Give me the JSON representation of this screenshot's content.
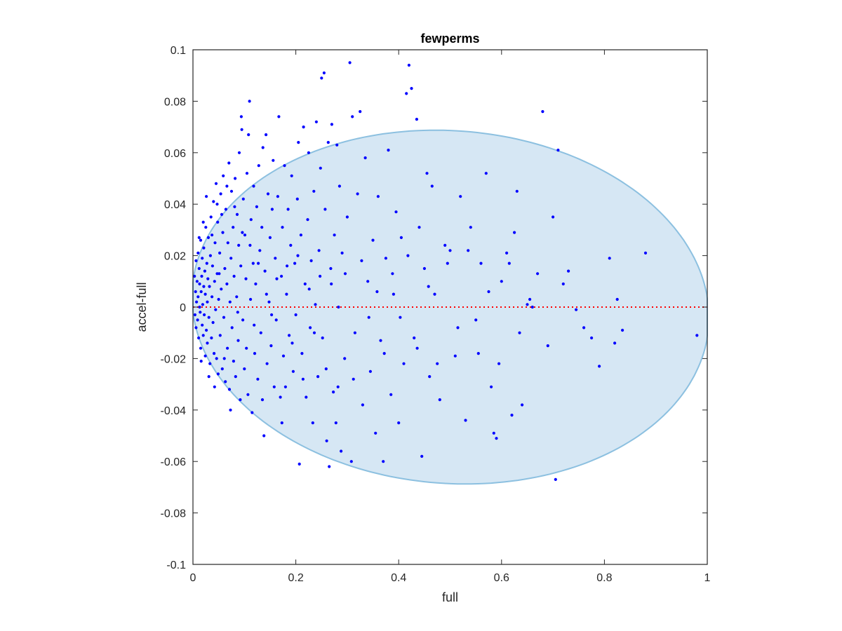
{
  "chart_data": {
    "type": "scatter",
    "title": "fewperms",
    "xlabel": "full",
    "ylabel": "accel-full",
    "xlim": [
      0,
      1
    ],
    "ylim": [
      -0.1,
      0.1
    ],
    "xticks": [
      "0",
      "0.2",
      "0.4",
      "0.6",
      "0.8",
      "1"
    ],
    "xtick_values": [
      0,
      0.2,
      0.4,
      0.6,
      0.8,
      1
    ],
    "yticks": [
      "0.1",
      "0.08",
      "0.06",
      "0.04",
      "0.02",
      "0",
      "-0.02",
      "-0.04",
      "-0.06",
      "-0.08",
      "-0.1"
    ],
    "ytick_values": [
      0.1,
      0.08,
      0.06,
      0.04,
      0.02,
      0,
      -0.02,
      -0.04,
      -0.06,
      -0.08,
      -0.1
    ],
    "grid": false,
    "marker_color": "#0000ff",
    "reference_line": {
      "y": 0,
      "color": "#ff0000",
      "style": "dotted"
    },
    "ellipse_region": {
      "fill": "#d6e7f4",
      "stroke": "#8cc0e0"
    },
    "points": [
      [
        0.003,
        0.012
      ],
      [
        0.004,
        -0.003
      ],
      [
        0.005,
        0.006
      ],
      [
        0.006,
        0.018
      ],
      [
        0.006,
        -0.008
      ],
      [
        0.007,
        0.002
      ],
      [
        0.008,
        0.01
      ],
      [
        0.009,
        -0.005
      ],
      [
        0.01,
        0.021
      ],
      [
        0.01,
        0.004
      ],
      [
        0.011,
        -0.012
      ],
      [
        0.012,
        0.015
      ],
      [
        0.013,
        0.0
      ],
      [
        0.013,
        0.009
      ],
      [
        0.014,
        -0.002
      ],
      [
        0.015,
        0.026
      ],
      [
        0.015,
        -0.016
      ],
      [
        0.016,
        0.006
      ],
      [
        0.017,
        0.012
      ],
      [
        0.018,
        -0.007
      ],
      [
        0.018,
        0.019
      ],
      [
        0.019,
        0.001
      ],
      [
        0.02,
        -0.011
      ],
      [
        0.021,
        0.023
      ],
      [
        0.021,
        0.008
      ],
      [
        0.022,
        -0.003
      ],
      [
        0.023,
        0.014
      ],
      [
        0.024,
        -0.019
      ],
      [
        0.024,
        0.005
      ],
      [
        0.025,
        0.031
      ],
      [
        0.026,
        -0.009
      ],
      [
        0.027,
        0.017
      ],
      [
        0.028,
        0.002
      ],
      [
        0.028,
        -0.014
      ],
      [
        0.029,
        0.011
      ],
      [
        0.03,
        0.027
      ],
      [
        0.031,
        -0.004
      ],
      [
        0.032,
        0.008
      ],
      [
        0.033,
        -0.022
      ],
      [
        0.034,
        0.02
      ],
      [
        0.035,
        0.035
      ],
      [
        0.036,
        -0.012
      ],
      [
        0.037,
        0.004
      ],
      [
        0.038,
        0.016
      ],
      [
        0.039,
        -0.006
      ],
      [
        0.04,
        0.041
      ],
      [
        0.041,
        -0.018
      ],
      [
        0.042,
        0.01
      ],
      [
        0.043,
        0.025
      ],
      [
        0.044,
        -0.001
      ],
      [
        0.045,
        0.048
      ],
      [
        0.046,
        -0.02
      ],
      [
        0.047,
        0.013
      ],
      [
        0.048,
        0.033
      ],
      [
        0.049,
        -0.026
      ],
      [
        0.05,
        0.003
      ],
      [
        0.052,
        0.021
      ],
      [
        0.053,
        -0.011
      ],
      [
        0.054,
        0.044
      ],
      [
        0.055,
        0.007
      ],
      [
        0.057,
        -0.024
      ],
      [
        0.058,
        0.029
      ],
      [
        0.059,
        0.051
      ],
      [
        0.06,
        -0.004
      ],
      [
        0.062,
        0.015
      ],
      [
        0.063,
        -0.029
      ],
      [
        0.064,
        0.038
      ],
      [
        0.066,
        0.009
      ],
      [
        0.067,
        -0.016
      ],
      [
        0.068,
        0.025
      ],
      [
        0.07,
        0.056
      ],
      [
        0.071,
        -0.032
      ],
      [
        0.072,
        0.002
      ],
      [
        0.074,
        0.019
      ],
      [
        0.075,
        0.045
      ],
      [
        0.076,
        -0.008
      ],
      [
        0.078,
        0.031
      ],
      [
        0.079,
        -0.021
      ],
      [
        0.08,
        0.012
      ],
      [
        0.082,
        0.05
      ],
      [
        0.083,
        -0.027
      ],
      [
        0.085,
        0.004
      ],
      [
        0.086,
        0.036
      ],
      [
        0.088,
        -0.013
      ],
      [
        0.089,
        0.024
      ],
      [
        0.09,
        0.06
      ],
      [
        0.092,
        -0.036
      ],
      [
        0.093,
        0.016
      ],
      [
        0.094,
        0.074
      ],
      [
        0.095,
        0.069
      ],
      [
        0.097,
        -0.005
      ],
      [
        0.098,
        0.042
      ],
      [
        0.1,
        -0.024
      ],
      [
        0.101,
        0.028
      ],
      [
        0.103,
        0.011
      ],
      [
        0.105,
        0.052
      ],
      [
        0.107,
        -0.034
      ],
      [
        0.108,
        0.067
      ],
      [
        0.11,
        0.08
      ],
      [
        0.112,
        0.003
      ],
      [
        0.113,
        0.034
      ],
      [
        0.115,
        -0.041
      ],
      [
        0.117,
        0.017
      ],
      [
        0.118,
        0.047
      ],
      [
        0.12,
        -0.018
      ],
      [
        0.122,
        0.009
      ],
      [
        0.124,
        0.039
      ],
      [
        0.126,
        -0.028
      ],
      [
        0.128,
        0.055
      ],
      [
        0.13,
        0.022
      ],
      [
        0.132,
        -0.01
      ],
      [
        0.134,
        0.031
      ],
      [
        0.136,
        0.062
      ],
      [
        0.138,
        -0.05
      ],
      [
        0.14,
        0.014
      ],
      [
        0.142,
        0.067
      ],
      [
        0.144,
        -0.022
      ],
      [
        0.146,
        0.044
      ],
      [
        0.148,
        0.002
      ],
      [
        0.15,
        0.027
      ],
      [
        0.152,
        -0.015
      ],
      [
        0.154,
        0.038
      ],
      [
        0.156,
        0.057
      ],
      [
        0.158,
        -0.031
      ],
      [
        0.16,
        0.019
      ],
      [
        0.162,
        -0.005
      ],
      [
        0.165,
        0.043
      ],
      [
        0.167,
        0.074
      ],
      [
        0.17,
        -0.035
      ],
      [
        0.172,
        0.012
      ],
      [
        0.174,
        0.031
      ],
      [
        0.176,
        -0.019
      ],
      [
        0.178,
        0.055
      ],
      [
        0.18,
        -0.031
      ],
      [
        0.182,
        0.005
      ],
      [
        0.185,
        0.038
      ],
      [
        0.187,
        -0.011
      ],
      [
        0.19,
        0.024
      ],
      [
        0.192,
        0.051
      ],
      [
        0.195,
        -0.025
      ],
      [
        0.198,
        0.017
      ],
      [
        0.2,
        -0.003
      ],
      [
        0.203,
        0.042
      ],
      [
        0.205,
        0.064
      ],
      [
        0.207,
        -0.061
      ],
      [
        0.21,
        0.028
      ],
      [
        0.212,
        -0.018
      ],
      [
        0.215,
        0.07
      ],
      [
        0.218,
        0.009
      ],
      [
        0.22,
        -0.035
      ],
      [
        0.223,
        0.034
      ],
      [
        0.225,
        0.06
      ],
      [
        0.228,
        -0.008
      ],
      [
        0.23,
        0.018
      ],
      [
        0.233,
        -0.045
      ],
      [
        0.235,
        0.045
      ],
      [
        0.238,
        0.001
      ],
      [
        0.24,
        0.072
      ],
      [
        0.243,
        -0.027
      ],
      [
        0.245,
        0.022
      ],
      [
        0.248,
        0.054
      ],
      [
        0.25,
        0.089
      ],
      [
        0.252,
        -0.012
      ],
      [
        0.255,
        0.091
      ],
      [
        0.257,
        0.038
      ],
      [
        0.26,
        -0.052
      ],
      [
        0.263,
        0.064
      ],
      [
        0.265,
        -0.062
      ],
      [
        0.268,
        0.015
      ],
      [
        0.27,
        0.071
      ],
      [
        0.273,
        -0.033
      ],
      [
        0.275,
        0.028
      ],
      [
        0.278,
        -0.045
      ],
      [
        0.28,
        0.063
      ],
      [
        0.283,
        0.0
      ],
      [
        0.285,
        0.047
      ],
      [
        0.288,
        -0.056
      ],
      [
        0.29,
        0.021
      ],
      [
        0.295,
        -0.02
      ],
      [
        0.3,
        0.035
      ],
      [
        0.305,
        0.095
      ],
      [
        0.308,
        -0.06
      ],
      [
        0.31,
        0.074
      ],
      [
        0.315,
        -0.01
      ],
      [
        0.32,
        0.044
      ],
      [
        0.325,
        0.076
      ],
      [
        0.33,
        -0.038
      ],
      [
        0.335,
        0.058
      ],
      [
        0.34,
        0.01
      ],
      [
        0.345,
        -0.025
      ],
      [
        0.35,
        0.026
      ],
      [
        0.355,
        -0.049
      ],
      [
        0.36,
        0.043
      ],
      [
        0.365,
        -0.013
      ],
      [
        0.37,
        -0.06
      ],
      [
        0.375,
        0.019
      ],
      [
        0.38,
        0.061
      ],
      [
        0.385,
        -0.034
      ],
      [
        0.39,
        0.005
      ],
      [
        0.395,
        0.037
      ],
      [
        0.4,
        -0.045
      ],
      [
        0.405,
        0.027
      ],
      [
        0.41,
        -0.022
      ],
      [
        0.415,
        0.083
      ],
      [
        0.42,
        0.094
      ],
      [
        0.425,
        0.085
      ],
      [
        0.43,
        -0.012
      ],
      [
        0.435,
        0.073
      ],
      [
        0.44,
        0.031
      ],
      [
        0.445,
        -0.058
      ],
      [
        0.45,
        0.015
      ],
      [
        0.455,
        0.052
      ],
      [
        0.46,
        -0.027
      ],
      [
        0.465,
        0.047
      ],
      [
        0.47,
        0.005
      ],
      [
        0.48,
        -0.036
      ],
      [
        0.49,
        0.024
      ],
      [
        0.5,
        0.022
      ],
      [
        0.51,
        -0.019
      ],
      [
        0.52,
        0.043
      ],
      [
        0.53,
        -0.044
      ],
      [
        0.54,
        0.031
      ],
      [
        0.55,
        -0.005
      ],
      [
        0.56,
        0.017
      ],
      [
        0.57,
        0.052
      ],
      [
        0.58,
        -0.031
      ],
      [
        0.585,
        -0.049
      ],
      [
        0.59,
        -0.051
      ],
      [
        0.6,
        0.01
      ],
      [
        0.61,
        0.021
      ],
      [
        0.62,
        -0.042
      ],
      [
        0.625,
        0.029
      ],
      [
        0.63,
        0.045
      ],
      [
        0.64,
        -0.038
      ],
      [
        0.65,
        0.001
      ],
      [
        0.66,
        0.0
      ],
      [
        0.67,
        0.013
      ],
      [
        0.68,
        0.076
      ],
      [
        0.69,
        -0.015
      ],
      [
        0.7,
        0.035
      ],
      [
        0.705,
        -0.067
      ],
      [
        0.71,
        0.061
      ],
      [
        0.72,
        0.009
      ],
      [
        0.73,
        0.014
      ],
      [
        0.745,
        -0.001
      ],
      [
        0.76,
        -0.008
      ],
      [
        0.775,
        -0.012
      ],
      [
        0.79,
        -0.023
      ],
      [
        0.81,
        0.019
      ],
      [
        0.82,
        -0.014
      ],
      [
        0.825,
        0.003
      ],
      [
        0.835,
        -0.009
      ],
      [
        0.88,
        0.021
      ],
      [
        0.98,
        -0.011
      ],
      [
        0.012,
        0.027
      ],
      [
        0.016,
        -0.021
      ],
      [
        0.02,
        0.033
      ],
      [
        0.026,
        0.043
      ],
      [
        0.031,
        -0.027
      ],
      [
        0.037,
        0.028
      ],
      [
        0.042,
        -0.031
      ],
      [
        0.047,
        0.04
      ],
      [
        0.051,
        0.013
      ],
      [
        0.056,
        0.036
      ],
      [
        0.061,
        -0.02
      ],
      [
        0.066,
        0.047
      ],
      [
        0.073,
        -0.04
      ],
      [
        0.081,
        0.039
      ],
      [
        0.087,
        -0.002
      ],
      [
        0.096,
        0.029
      ],
      [
        0.104,
        -0.016
      ],
      [
        0.111,
        0.024
      ],
      [
        0.119,
        -0.007
      ],
      [
        0.127,
        0.017
      ],
      [
        0.135,
        -0.036
      ],
      [
        0.143,
        0.005
      ],
      [
        0.153,
        -0.003
      ],
      [
        0.163,
        0.011
      ],
      [
        0.173,
        -0.045
      ],
      [
        0.183,
        0.016
      ],
      [
        0.193,
        -0.014
      ],
      [
        0.204,
        0.02
      ],
      [
        0.214,
        -0.028
      ],
      [
        0.226,
        0.007
      ],
      [
        0.236,
        -0.01
      ],
      [
        0.247,
        0.012
      ],
      [
        0.259,
        -0.024
      ],
      [
        0.269,
        0.009
      ],
      [
        0.282,
        -0.031
      ],
      [
        0.296,
        0.013
      ],
      [
        0.312,
        -0.028
      ],
      [
        0.328,
        0.018
      ],
      [
        0.342,
        -0.004
      ],
      [
        0.358,
        0.006
      ],
      [
        0.372,
        -0.018
      ],
      [
        0.388,
        0.013
      ],
      [
        0.403,
        -0.004
      ],
      [
        0.418,
        0.02
      ],
      [
        0.436,
        -0.016
      ],
      [
        0.458,
        0.008
      ],
      [
        0.475,
        -0.022
      ],
      [
        0.495,
        0.017
      ],
      [
        0.515,
        -0.008
      ],
      [
        0.535,
        0.022
      ],
      [
        0.555,
        -0.018
      ],
      [
        0.575,
        0.006
      ],
      [
        0.595,
        -0.022
      ],
      [
        0.615,
        0.017
      ],
      [
        0.635,
        -0.01
      ],
      [
        0.655,
        0.003
      ]
    ]
  }
}
